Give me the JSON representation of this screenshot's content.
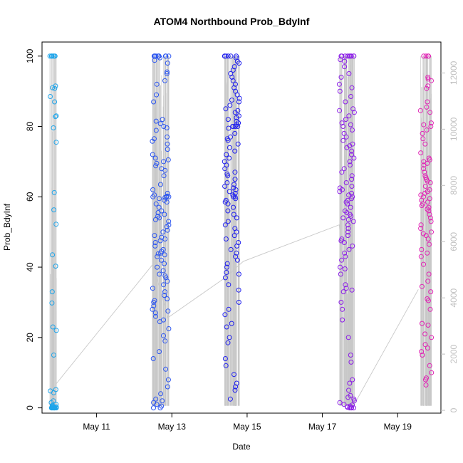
{
  "chart_data": {
    "type": "scatter",
    "title": "ATOM4 Northbound Prob_BdyInf",
    "xlabel": "Date",
    "ylabel": "Prob_BdyInf",
    "x_ticks": [
      "May 11",
      "May 13",
      "May 15",
      "May 17",
      "May 19"
    ],
    "x_tick_days": [
      11,
      13,
      15,
      17,
      19
    ],
    "xlim_days": [
      9.55,
      20.15
    ],
    "y_ticks": [
      0,
      20,
      40,
      60,
      80,
      100
    ],
    "ylim": [
      -1.5,
      104
    ],
    "y2_ticks": [
      0,
      2000,
      4000,
      6000,
      8000,
      10000,
      12000
    ],
    "y2lim": [
      -100,
      13100
    ],
    "grid": false,
    "series": [
      {
        "day": 9.85,
        "color": "#1fa5ea",
        "spread": 0.09,
        "values": [
          100,
          100,
          100,
          100,
          100,
          100,
          100,
          100,
          91.5,
          91,
          90.8,
          88.5,
          87,
          83,
          82.8,
          79.6,
          75.5,
          61.2,
          56.3,
          52.2,
          43.5,
          40.3,
          33,
          29.8,
          23,
          22,
          15,
          5.2,
          4.8,
          4.3,
          2,
          1.5,
          1,
          0.7,
          0.5,
          0.3,
          0.2,
          0.1,
          0.1,
          0,
          0,
          0,
          0,
          0,
          0,
          0,
          0,
          0,
          0,
          0,
          0
        ]
      },
      {
        "day": 12.7,
        "color": "#2b55f0",
        "spread": 0.22,
        "values": [
          100,
          100,
          100,
          100,
          100,
          100,
          100,
          100,
          100,
          100,
          99.5,
          98.8,
          98,
          95.5,
          95,
          93,
          92,
          89,
          87,
          82,
          81.5,
          80.8,
          80,
          79.6,
          78.9,
          77,
          76.5,
          75.8,
          75,
          73.5,
          72,
          71,
          70.5,
          70,
          69.5,
          68.8,
          68,
          67.5,
          66,
          63.5,
          62,
          61,
          60.5,
          60.2,
          60,
          60,
          60,
          59.8,
          59.5,
          59,
          58.5,
          58,
          57,
          56,
          55.5,
          55,
          54.5,
          54,
          53.5,
          53,
          52,
          51.5,
          50.5,
          50,
          49,
          48.5,
          48,
          47.5,
          47,
          46,
          45,
          44.5,
          44,
          43.8,
          43.5,
          43,
          42,
          41,
          40,
          39,
          38,
          37.5,
          37,
          36,
          35,
          34,
          33,
          32,
          31,
          30.5,
          30,
          29,
          28,
          27.5,
          27,
          26,
          25,
          24.5,
          22.5,
          20.5,
          19,
          16,
          14,
          11,
          8,
          6,
          4,
          2.5,
          2,
          1.5,
          1,
          0.5,
          0,
          0
        ]
      },
      {
        "day": 14.6,
        "color": "#2020ee",
        "spread": 0.2,
        "values": [
          100,
          100,
          100,
          100,
          100,
          100,
          99.5,
          98.5,
          98,
          97,
          96,
          95,
          94,
          93,
          92,
          91,
          90,
          89,
          88,
          87.5,
          87,
          86,
          85,
          84.5,
          84,
          83,
          82.5,
          82,
          81.5,
          81,
          80.5,
          80,
          80,
          80,
          80,
          79.5,
          78,
          77,
          76.5,
          76,
          75,
          74,
          73,
          72,
          71,
          70,
          69,
          68,
          67,
          66.5,
          66,
          65,
          64,
          63.5,
          63,
          62.5,
          62,
          61.5,
          61,
          60.5,
          60,
          60,
          59.5,
          59,
          58.5,
          58,
          57,
          56,
          55,
          54,
          53,
          52,
          51,
          50,
          49,
          48,
          47,
          46,
          45,
          44,
          43,
          42,
          41,
          40,
          38.5,
          38,
          37,
          35,
          33.5,
          30,
          28,
          26.5,
          24,
          23,
          20,
          18.5,
          14,
          12,
          9.5,
          7,
          6,
          5,
          2.5
        ]
      },
      {
        "day": 17.65,
        "color": "#8b1ce8",
        "spread": 0.2,
        "values": [
          100,
          100,
          100,
          100,
          100,
          100,
          100,
          100,
          100,
          100,
          99,
          98.5,
          97,
          95,
          94,
          92,
          91,
          90,
          88.5,
          87,
          85,
          84.5,
          84,
          83,
          82,
          81,
          80.5,
          80,
          79,
          78,
          77,
          76,
          75,
          74.5,
          74,
          73,
          72,
          71,
          70,
          69,
          68,
          67,
          66,
          65,
          64,
          63,
          62.5,
          62,
          61.5,
          61,
          60.5,
          60,
          59.5,
          59,
          58.5,
          58,
          57,
          56,
          55.5,
          55,
          54.5,
          54,
          53.5,
          53,
          52,
          51,
          50,
          49,
          48,
          47.5,
          47,
          46,
          45,
          44,
          43,
          42,
          40,
          39.5,
          38,
          35,
          34,
          33.5,
          33,
          30,
          28,
          25,
          20,
          15,
          13,
          8,
          7,
          5,
          3.5,
          3,
          2.5,
          2,
          1.5,
          1,
          0.8,
          0.5,
          0.3,
          0.2,
          0,
          0,
          0,
          0
        ]
      },
      {
        "day": 19.75,
        "color": "#e023b4",
        "spread": 0.15,
        "values": [
          100,
          100,
          100,
          100,
          94,
          93.5,
          93,
          91.5,
          90.8,
          87,
          85.5,
          84.5,
          84,
          81,
          80.5,
          80,
          79,
          78,
          76.5,
          75,
          72.5,
          71,
          70.5,
          70,
          69.5,
          69,
          68,
          67,
          66,
          65.5,
          65,
          64.5,
          64,
          63,
          62,
          61.5,
          61,
          60.5,
          60,
          59.5,
          59,
          58.5,
          58,
          57.5,
          57,
          56.5,
          56,
          55,
          54,
          53,
          52,
          51,
          50,
          49.5,
          49,
          48,
          46.5,
          45,
          44,
          43,
          40.8,
          38,
          36,
          34.5,
          33,
          31,
          30.5,
          28,
          24,
          23.5,
          21,
          20,
          18,
          17,
          16,
          15,
          12,
          10,
          8.5,
          8,
          6.5
        ]
      }
    ],
    "line_y2": [
      {
        "day": 9.9,
        "value": 900
      },
      {
        "day": 12.5,
        "value": 5200
      },
      {
        "day": 12.9,
        "value": 3300
      },
      {
        "day": 14.4,
        "value": 4700
      },
      {
        "day": 14.9,
        "value": 5300
      },
      {
        "day": 17.45,
        "value": 6600
      },
      {
        "day": 17.8,
        "value": 100
      },
      {
        "day": 19.55,
        "value": 4300
      }
    ]
  }
}
